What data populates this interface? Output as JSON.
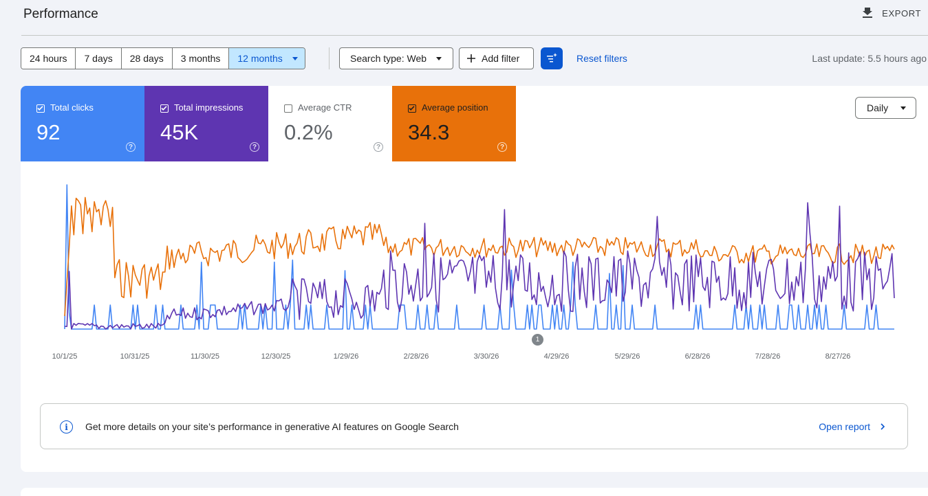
{
  "header": {
    "title": "Performance",
    "export_label": "EXPORT"
  },
  "toolbar": {
    "ranges": [
      "24 hours",
      "7 days",
      "28 days",
      "3 months",
      "12 months"
    ],
    "active_range": "12 months",
    "search_type": "Search type: Web",
    "add_filter": "Add filter",
    "reset_filters": "Reset filters",
    "last_update": "Last update: 5.5 hours ago"
  },
  "metrics": [
    {
      "label": "Total clicks",
      "value": "92",
      "checked": true,
      "color": "#4285f4"
    },
    {
      "label": "Total impressions",
      "value": "45K",
      "checked": true,
      "color": "#5e35b1"
    },
    {
      "label": "Average CTR",
      "value": "0.2%",
      "checked": false,
      "color": "#ffffff"
    },
    {
      "label": "Average position",
      "value": "34.3",
      "checked": true,
      "color": "#e8710a"
    }
  ],
  "granularity": "Daily",
  "annotation_count": "1",
  "banner": {
    "text": "Get more details on your site’s performance in generative AI features on Google Search",
    "link": "Open report"
  },
  "chart_data": {
    "type": "line",
    "x_tick_labels": [
      "10/1/25",
      "10/31/25",
      "11/30/25",
      "12/30/25",
      "1/29/26",
      "2/28/26",
      "3/30/26",
      "4/29/26",
      "5/29/26",
      "6/28/26",
      "7/28/26",
      "8/27/26"
    ],
    "y_axes_hidden": true,
    "series": [
      {
        "name": "Total clicks",
        "color": "#4285f4"
      },
      {
        "name": "Total impressions",
        "color": "#5e35b1"
      },
      {
        "name": "Average position",
        "color": "#e8710a"
      }
    ]
  }
}
